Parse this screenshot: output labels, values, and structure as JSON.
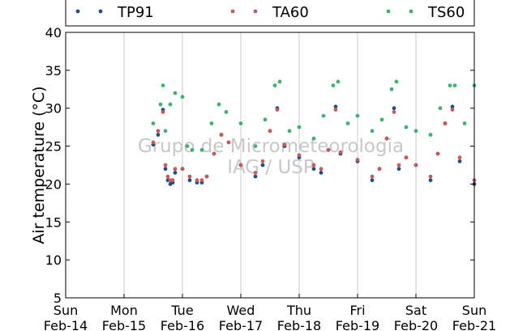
{
  "watermark": {
    "line1": "Grupo de Micrometeorologia",
    "line2": "IAG / USP"
  },
  "chart_data": {
    "type": "scatter",
    "title": "",
    "xlabel": "",
    "ylabel": "Air temperature (°C)",
    "ylim": [
      5,
      40
    ],
    "yticks": [
      5,
      10,
      15,
      20,
      25,
      30,
      35,
      40
    ],
    "xlim": [
      "2016-02-14 00:00",
      "2016-02-21 00:00"
    ],
    "xticks": [
      {
        "day": "Sun",
        "date": "Feb-14"
      },
      {
        "day": "Mon",
        "date": "Feb-15"
      },
      {
        "day": "Tue",
        "date": "Feb-16"
      },
      {
        "day": "Wed",
        "date": "Feb-17"
      },
      {
        "day": "Thu",
        "date": "Feb-18"
      },
      {
        "day": "Fri",
        "date": "Feb-19"
      },
      {
        "day": "Sat",
        "date": "Feb-20"
      },
      {
        "day": "Sun",
        "date": "Feb-21"
      }
    ],
    "grid": "vertical",
    "legend_position": "top",
    "series": [
      {
        "name": "TP91",
        "color": "#1f4e8c",
        "x": [
          "2016-02-15 12:00",
          "2016-02-15 14:00",
          "2016-02-15 16:00",
          "2016-02-15 17:00",
          "2016-02-15 18:00",
          "2016-02-15 19:00",
          "2016-02-15 20:00",
          "2016-02-15 21:00",
          "2016-02-16 00:00",
          "2016-02-16 03:00",
          "2016-02-16 06:00",
          "2016-02-16 08:00",
          "2016-02-16 10:00",
          "2016-02-16 13:00",
          "2016-02-16 16:00",
          "2016-02-16 19:00",
          "2016-02-17 00:00",
          "2016-02-17 06:00",
          "2016-02-17 09:00",
          "2016-02-17 12:00",
          "2016-02-17 15:00",
          "2016-02-17 18:00",
          "2016-02-18 00:00",
          "2016-02-18 06:00",
          "2016-02-18 09:00",
          "2016-02-18 12:00",
          "2016-02-18 15:00",
          "2016-02-18 17:00",
          "2016-02-19 00:00",
          "2016-02-19 06:00",
          "2016-02-19 09:00",
          "2016-02-19 12:00",
          "2016-02-19 15:00",
          "2016-02-19 17:00",
          "2016-02-19 20:00",
          "2016-02-20 00:00",
          "2016-02-20 06:00",
          "2016-02-20 09:00",
          "2016-02-20 12:00",
          "2016-02-20 15:00",
          "2016-02-20 18:00",
          "2016-02-21 00:00"
        ],
        "y": [
          25.2,
          26.5,
          29.8,
          22.0,
          20.5,
          20.0,
          20.2,
          21.5,
          22.0,
          20.5,
          20.2,
          20.2,
          21.0,
          24.0,
          26.5,
          25.5,
          22.5,
          21.0,
          22.5,
          27.0,
          30.0,
          25.0,
          23.5,
          22.0,
          21.5,
          24.5,
          30.2,
          24.0,
          23.0,
          20.5,
          22.0,
          26.0,
          30.0,
          22.0,
          23.5,
          22.5,
          20.5,
          24.0,
          28.0,
          30.2,
          23.0,
          20.0
        ]
      },
      {
        "name": "TA60",
        "color": "#c85a5a",
        "x": [
          "2016-02-15 12:00",
          "2016-02-15 14:00",
          "2016-02-15 16:00",
          "2016-02-15 17:00",
          "2016-02-15 18:00",
          "2016-02-15 19:00",
          "2016-02-15 20:00",
          "2016-02-15 21:00",
          "2016-02-16 00:00",
          "2016-02-16 03:00",
          "2016-02-16 06:00",
          "2016-02-16 08:00",
          "2016-02-16 10:00",
          "2016-02-16 13:00",
          "2016-02-16 16:00",
          "2016-02-16 19:00",
          "2016-02-17 00:00",
          "2016-02-17 06:00",
          "2016-02-17 09:00",
          "2016-02-17 12:00",
          "2016-02-17 15:00",
          "2016-02-17 18:00",
          "2016-02-18 00:00",
          "2016-02-18 06:00",
          "2016-02-18 09:00",
          "2016-02-18 12:00",
          "2016-02-18 15:00",
          "2016-02-18 17:00",
          "2016-02-19 00:00",
          "2016-02-19 06:00",
          "2016-02-19 09:00",
          "2016-02-19 12:00",
          "2016-02-19 15:00",
          "2016-02-19 17:00",
          "2016-02-19 20:00",
          "2016-02-20 00:00",
          "2016-02-20 06:00",
          "2016-02-20 09:00",
          "2016-02-20 12:00",
          "2016-02-20 15:00",
          "2016-02-20 18:00",
          "2016-02-21 00:00"
        ],
        "y": [
          25.5,
          27.0,
          29.5,
          22.5,
          21.0,
          20.5,
          20.5,
          22.0,
          22.0,
          21.0,
          20.5,
          20.5,
          21.0,
          24.0,
          26.5,
          25.5,
          22.5,
          21.5,
          23.0,
          27.0,
          29.8,
          25.2,
          23.8,
          22.5,
          22.0,
          24.5,
          29.8,
          24.2,
          23.2,
          21.0,
          22.0,
          26.0,
          29.5,
          22.5,
          23.5,
          22.5,
          21.0,
          24.0,
          28.0,
          29.8,
          23.5,
          20.5
        ]
      },
      {
        "name": "TS60",
        "color": "#3cb371",
        "x": [
          "2016-02-15 12:00",
          "2016-02-15 15:00",
          "2016-02-15 16:00",
          "2016-02-15 17:00",
          "2016-02-15 19:00",
          "2016-02-15 21:00",
          "2016-02-16 00:00",
          "2016-02-16 02:00",
          "2016-02-16 04:00",
          "2016-02-16 08:00",
          "2016-02-16 12:00",
          "2016-02-16 15:00",
          "2016-02-16 18:00",
          "2016-02-17 00:00",
          "2016-02-17 06:00",
          "2016-02-17 10:00",
          "2016-02-17 14:00",
          "2016-02-17 16:00",
          "2016-02-17 20:00",
          "2016-02-18 00:00",
          "2016-02-18 06:00",
          "2016-02-18 10:00",
          "2016-02-18 14:00",
          "2016-02-18 16:00",
          "2016-02-18 20:00",
          "2016-02-19 00:00",
          "2016-02-19 06:00",
          "2016-02-19 10:00",
          "2016-02-19 14:00",
          "2016-02-19 16:00",
          "2016-02-19 20:00",
          "2016-02-20 00:00",
          "2016-02-20 06:00",
          "2016-02-20 10:00",
          "2016-02-20 14:00",
          "2016-02-20 16:00",
          "2016-02-20 20:00",
          "2016-02-21 00:00"
        ],
        "y": [
          28.0,
          30.5,
          33.0,
          27.0,
          30.5,
          32.0,
          31.5,
          25.0,
          24.5,
          24.5,
          28.0,
          30.5,
          29.5,
          28.0,
          25.0,
          28.5,
          33.0,
          33.5,
          27.0,
          27.5,
          26.0,
          29.0,
          33.0,
          33.5,
          28.0,
          29.0,
          27.0,
          28.5,
          32.5,
          33.5,
          27.5,
          27.0,
          26.5,
          30.0,
          33.0,
          33.0,
          28.0,
          33.0
        ]
      }
    ]
  }
}
